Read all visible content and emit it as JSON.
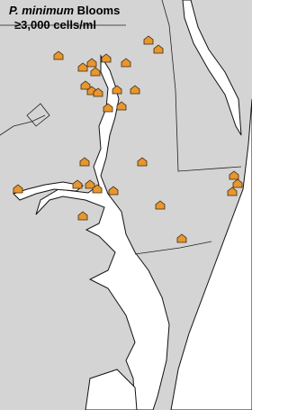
{
  "title": {
    "italic": "P. minimum",
    "rest": "Blooms"
  },
  "subtitle": "≥3,000 cells/ml"
}
